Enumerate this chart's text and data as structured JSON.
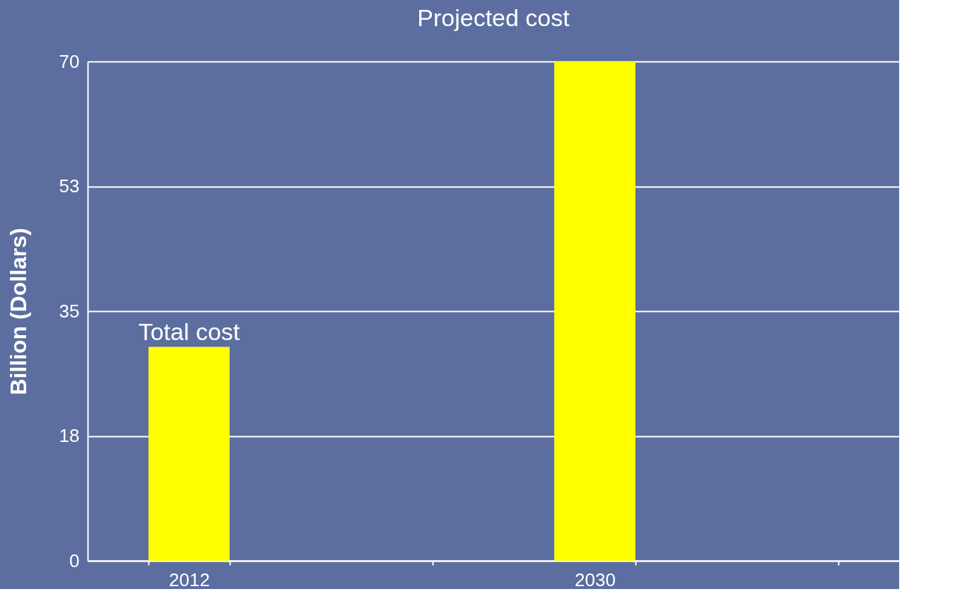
{
  "chart_data": {
    "type": "bar",
    "title": "Projected cost",
    "ylabel": "Billion (Dollars)",
    "categories": [
      "2012",
      null,
      "2030",
      null
    ],
    "values": [
      30,
      null,
      70,
      null
    ],
    "color": "#ffff00",
    "ylim": [
      0,
      70
    ],
    "yticks": [
      0,
      {
        "value": 17.5,
        "label": "18"
      },
      35,
      {
        "value": 52.5,
        "label": "53"
      },
      70
    ],
    "grid": "y",
    "annotations": [
      {
        "text": "Total cost",
        "x": "2012",
        "y": 30
      }
    ]
  }
}
